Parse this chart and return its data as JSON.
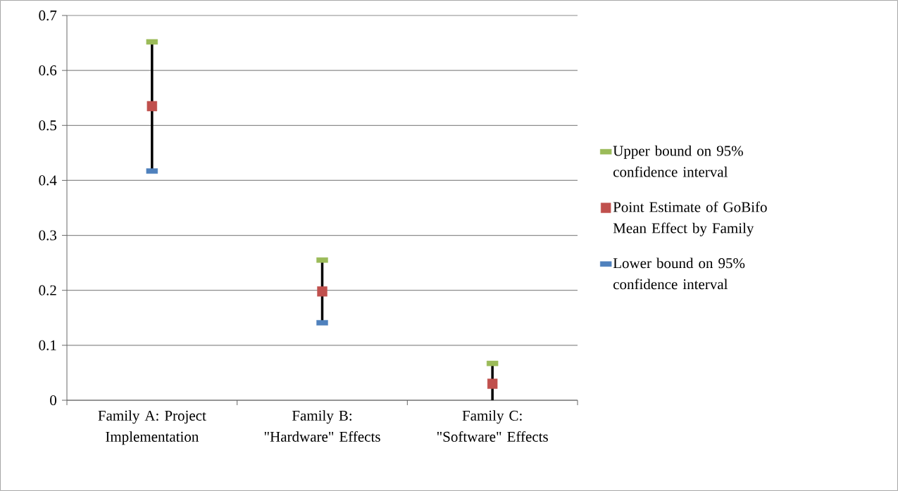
{
  "chart_data": {
    "type": "scatter",
    "categories": [
      "Family A: Project Implementation",
      "Family B: \"Hardware\" Effects",
      "Family C: \"Software\" Effects"
    ],
    "series": [
      {
        "name": "Upper bound on 95% confidence interval",
        "color": "#9bbb59",
        "values": [
          0.652,
          0.255,
          0.067
        ]
      },
      {
        "name": "Point Estimate of GoBifo Mean Effect by Family",
        "color": "#c0504d",
        "marker": "square",
        "values": [
          0.535,
          0.198,
          0.03
        ]
      },
      {
        "name": "Lower bound on 95% confidence interval",
        "color": "#4f81bd",
        "values": [
          0.417,
          0.141,
          null
        ]
      }
    ],
    "ylim": [
      0,
      0.7
    ],
    "yticks": [
      0,
      0.1,
      0.2,
      0.3,
      0.4,
      0.5,
      0.6,
      0.7
    ],
    "grid": "y",
    "legend": "right"
  }
}
